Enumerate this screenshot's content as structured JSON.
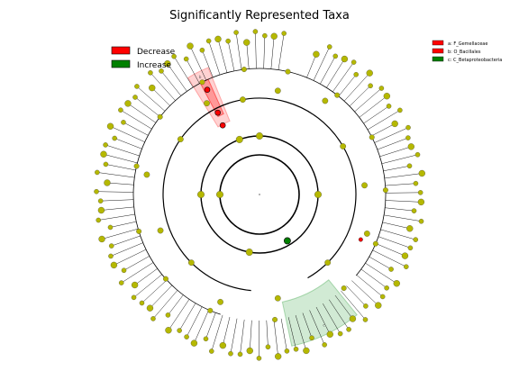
{
  "figure": {
    "title": "Significantly Represented Taxa"
  },
  "legend_left": {
    "items": [
      {
        "label": "Decrease",
        "color": "#ff0000"
      },
      {
        "label": "Increase",
        "color": "#008000"
      }
    ]
  },
  "legend_right": {
    "items": [
      {
        "label": "a: F_Gemellaceae",
        "color": "#ff0000"
      },
      {
        "label": "b: O_Bacillales",
        "color": "#ff0000"
      },
      {
        "label": "c: C_Betaproteobacteria",
        "color": "#008000"
      }
    ]
  },
  "cladogram": {
    "node_color": "#b5b800",
    "highlights": [
      {
        "letter": "a",
        "class": "Decrease",
        "color": "#ff0000"
      },
      {
        "letter": "b",
        "class": "Decrease",
        "color": "#ff0000"
      },
      {
        "letter": "c",
        "class": "Increase",
        "color": "#008000"
      }
    ]
  }
}
